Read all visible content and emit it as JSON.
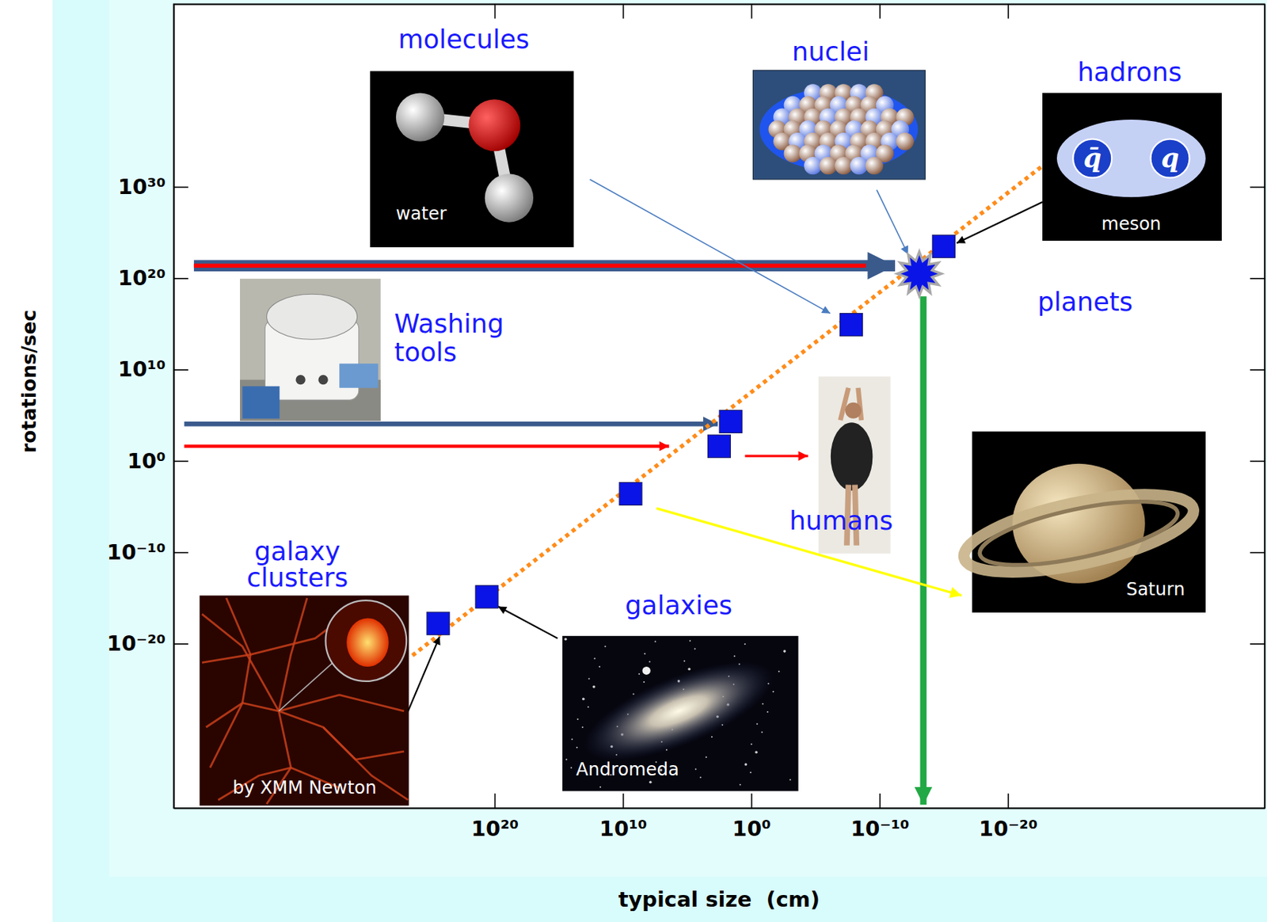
{
  "chart_data": {
    "type": "scatter",
    "x_label": "typical size  (cm)",
    "y_label": "rotations/sec",
    "log": true,
    "grid": false,
    "xlim": [
      1e+45,
      1e-40
    ],
    "ylim": [
      1e-38,
      1e+50
    ],
    "xticks": [
      {
        "value": 1e+20,
        "label": "10²⁰"
      },
      {
        "value": 10000000000.0,
        "label": "10¹⁰"
      },
      {
        "value": 1,
        "label": "10⁰"
      },
      {
        "value": 1e-10,
        "label": "10⁻¹⁰"
      },
      {
        "value": 1e-20,
        "label": "10⁻²⁰"
      }
    ],
    "yticks": [
      {
        "value": 1e+30,
        "label": "10³⁰"
      },
      {
        "value": 1e+20,
        "label": "10²⁰"
      },
      {
        "value": 10000000000.0,
        "label": "10¹⁰"
      },
      {
        "value": 1,
        "label": "10⁰"
      },
      {
        "value": 1e-10,
        "label": "10⁻¹⁰"
      },
      {
        "value": 1e-20,
        "label": "10⁻²⁰"
      }
    ],
    "series": [
      {
        "type": "scatter",
        "marker": "square",
        "color": "#0a14e6",
        "x": [
          2.5e+24,
          4e+20,
          2500000000.0,
          316,
          40,
          1.6e-08,
          1e-15
        ],
        "values": [
          1.6e-18,
          1.3e-15,
          0.00025,
          40,
          20000.0,
          800000000000000.0,
          3e+23
        ]
      },
      {
        "type": "scatter",
        "marker": "star",
        "color": "#0a14e6",
        "x": [
          8e-14
        ],
        "values": [
          3e+20
        ]
      },
      {
        "type": "line",
        "line_style": "dotted",
        "color": "#ff8c1a",
        "x": [
          2.5e+26,
          1.6e-23
        ],
        "values": [
          5e-22,
          2.5e+32
        ]
      }
    ],
    "annotations": [
      {
        "text": "molecules"
      },
      {
        "text": "nuclei"
      },
      {
        "text": "hadrons"
      },
      {
        "text": "Washing tools"
      },
      {
        "text": "planets"
      },
      {
        "text": "humans"
      },
      {
        "text": "galaxy clusters"
      },
      {
        "text": "galaxies"
      },
      {
        "text": "water"
      },
      {
        "text": "meson"
      },
      {
        "text": "Saturn"
      },
      {
        "text": "by XMM Newton"
      },
      {
        "text": "Andromeda"
      },
      {
        "text": "q̄"
      },
      {
        "text": "q"
      }
    ]
  }
}
